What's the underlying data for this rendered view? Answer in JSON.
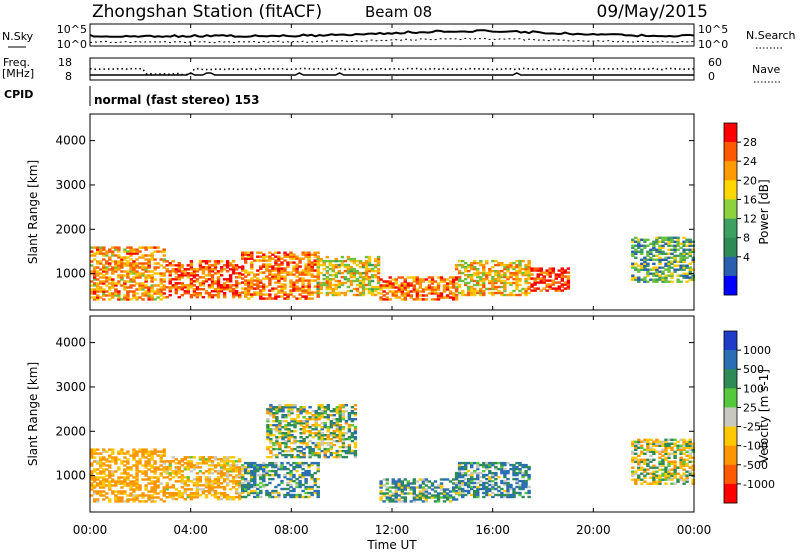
{
  "header": {
    "station": "Zhongshan Station (fitACF)",
    "beam": "Beam 08",
    "date": "09/May/2015"
  },
  "noise_panel": {
    "left_label": "N.Sky",
    "right_label": "N.Search",
    "left_ticks": [
      "10^5",
      "10^0"
    ],
    "right_ticks": [
      "10^5",
      "10^0"
    ]
  },
  "freq_panel": {
    "left_label_1": "Freq.",
    "left_label_2": "[MHz]",
    "right_label": "Nave",
    "left_ticks": [
      "18",
      "8"
    ],
    "right_ticks": [
      "60",
      "0"
    ]
  },
  "cpid_panel": {
    "label": "CPID",
    "text": "normal (fast stereo) 153"
  },
  "x_axis": {
    "label": "Time UT",
    "ticks": [
      "00:00",
      "04:00",
      "08:00",
      "12:00",
      "16:00",
      "20:00",
      "00:00"
    ]
  },
  "power_colorbar": {
    "label": "Power [dB]",
    "ticks": [
      "28",
      "24",
      "20",
      "16",
      "12",
      "8",
      "4"
    ],
    "colors": [
      "#ff0000",
      "#ff5a00",
      "#ff9a00",
      "#ffd700",
      "#8cd23c",
      "#3ca060",
      "#2e8b57",
      "#2a5fb0",
      "#0000ff"
    ]
  },
  "velocity_colorbar": {
    "label": "Velocity [m s-1]",
    "ticks": [
      "1000",
      "500",
      "100",
      "25",
      "-25",
      "-100",
      "-500",
      "-1000"
    ],
    "colors": [
      "#1e3cc8",
      "#2a6eb4",
      "#2e8b57",
      "#55c83c",
      "#c8c8c0",
      "#ffc800",
      "#ff9600",
      "#ff5a00",
      "#ff0000"
    ]
  },
  "chart_data": [
    {
      "type": "heatmap",
      "title": "",
      "xlabel": "Time UT",
      "ylabel": "Slant Range [km]",
      "xlim": [
        0,
        24
      ],
      "ylim": [
        180,
        4600
      ],
      "yticks": [
        1000,
        2000,
        3000,
        4000
      ],
      "zlabel": "Power [dB]",
      "zrange": [
        0,
        32
      ],
      "regions": [
        {
          "t": [
            0.0,
            3.0
          ],
          "r": [
            400,
            1600
          ],
          "z": 22
        },
        {
          "t": [
            3.0,
            6.0
          ],
          "r": [
            450,
            1300
          ],
          "z": 26
        },
        {
          "t": [
            6.0,
            9.0
          ],
          "r": [
            420,
            1500
          ],
          "z": 24
        },
        {
          "t": [
            9.0,
            11.5
          ],
          "r": [
            500,
            1400
          ],
          "z": 18
        },
        {
          "t": [
            11.5,
            14.5
          ],
          "r": [
            400,
            900
          ],
          "z": 24
        },
        {
          "t": [
            14.5,
            17.5
          ],
          "r": [
            500,
            1300
          ],
          "z": 20
        },
        {
          "t": [
            17.5,
            19.0
          ],
          "r": [
            600,
            1100
          ],
          "z": 28
        },
        {
          "t": [
            21.5,
            24.0
          ],
          "r": [
            800,
            1800
          ],
          "z": 12
        }
      ]
    },
    {
      "type": "heatmap",
      "title": "",
      "xlabel": "Time UT",
      "ylabel": "Slant Range [km]",
      "xlim": [
        0,
        24
      ],
      "ylim": [
        180,
        4600
      ],
      "yticks": [
        1000,
        2000,
        3000,
        4000
      ],
      "zlabel": "Velocity [m s-1]",
      "zrange": [
        -1000,
        1000
      ],
      "regions": [
        {
          "t": [
            0.0,
            3.0
          ],
          "r": [
            400,
            1600
          ],
          "z": -150
        },
        {
          "t": [
            3.0,
            6.0
          ],
          "r": [
            450,
            1400
          ],
          "z": -120
        },
        {
          "t": [
            6.0,
            9.0
          ],
          "r": [
            500,
            1300
          ],
          "z": 80
        },
        {
          "t": [
            7.0,
            10.5
          ],
          "r": [
            1400,
            2600
          ],
          "z": 0
        },
        {
          "t": [
            11.5,
            14.5
          ],
          "r": [
            400,
            900
          ],
          "z": 60
        },
        {
          "t": [
            14.5,
            17.5
          ],
          "r": [
            500,
            1300
          ],
          "z": 90
        },
        {
          "t": [
            21.5,
            24.0
          ],
          "r": [
            800,
            1800
          ],
          "z": -30
        }
      ]
    }
  ]
}
